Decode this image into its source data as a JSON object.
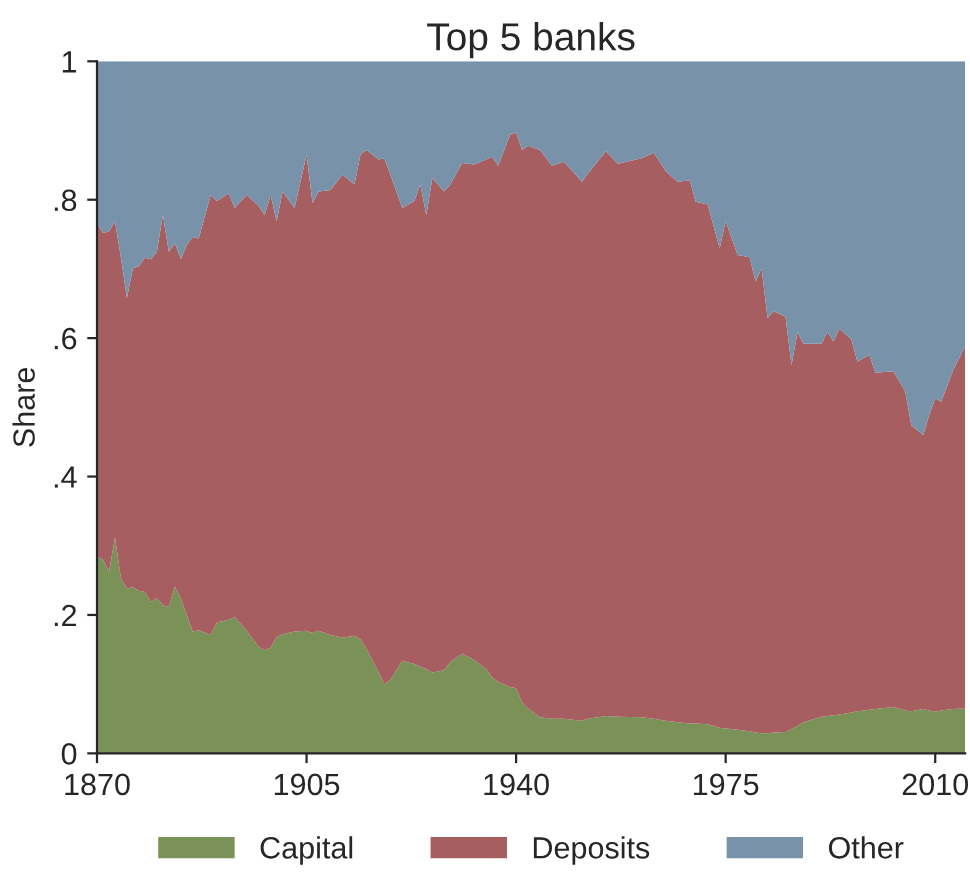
{
  "chart_data": {
    "type": "area",
    "title": "Top 5 banks",
    "ylabel": "Share",
    "stacked": true,
    "x": [
      1870,
      1871,
      1872,
      1873,
      1874,
      1875,
      1876,
      1877,
      1878,
      1879,
      1880,
      1881,
      1882,
      1883,
      1884,
      1885,
      1886,
      1887,
      1889,
      1890,
      1892,
      1893,
      1895,
      1897,
      1898,
      1899,
      1900,
      1901,
      1903,
      1905,
      1906,
      1907,
      1909,
      1911,
      1913,
      1914,
      1915,
      1917,
      1918,
      1919,
      1921,
      1923,
      1924,
      1925,
      1926,
      1928,
      1929,
      1931,
      1933,
      1935,
      1936,
      1937,
      1939,
      1940,
      1941,
      1942,
      1944,
      1946,
      1948,
      1951,
      1952,
      1955,
      1957,
      1961,
      1963,
      1965,
      1967,
      1969,
      1970,
      1972,
      1974,
      1975,
      1977,
      1979,
      1980,
      1981,
      1982,
      1983,
      1985,
      1986,
      1987,
      1988,
      1991,
      1992,
      1993,
      1994,
      1996,
      1997,
      1999,
      2000,
      2003,
      2005,
      2006,
      2008,
      2009,
      2010,
      2011,
      2013,
      2015
    ],
    "series": [
      {
        "name": "Capital",
        "color": "#7a9157",
        "values": [
          0.284,
          0.28,
          0.262,
          0.312,
          0.253,
          0.238,
          0.24,
          0.235,
          0.233,
          0.219,
          0.224,
          0.214,
          0.212,
          0.241,
          0.224,
          0.2,
          0.176,
          0.178,
          0.171,
          0.189,
          0.193,
          0.197,
          0.177,
          0.154,
          0.149,
          0.153,
          0.168,
          0.172,
          0.176,
          0.177,
          0.174,
          0.177,
          0.171,
          0.167,
          0.17,
          0.165,
          0.151,
          0.118,
          0.1,
          0.106,
          0.134,
          0.129,
          0.125,
          0.122,
          0.117,
          0.12,
          0.132,
          0.144,
          0.135,
          0.122,
          0.11,
          0.103,
          0.096,
          0.094,
          0.074,
          0.065,
          0.052,
          0.05,
          0.05,
          0.047,
          0.05,
          0.054,
          0.053,
          0.052,
          0.05,
          0.047,
          0.045,
          0.043,
          0.043,
          0.042,
          0.037,
          0.036,
          0.034,
          0.032,
          0.03,
          0.029,
          0.029,
          0.03,
          0.031,
          0.035,
          0.04,
          0.045,
          0.053,
          0.054,
          0.055,
          0.056,
          0.059,
          0.061,
          0.063,
          0.064,
          0.067,
          0.062,
          0.061,
          0.064,
          0.062,
          0.06,
          0.062,
          0.064,
          0.065
        ]
      },
      {
        "name": "Deposits",
        "color": "#a65e60",
        "values": [
          0.482,
          0.472,
          0.492,
          0.457,
          0.463,
          0.42,
          0.461,
          0.469,
          0.483,
          0.495,
          0.501,
          0.564,
          0.513,
          0.496,
          0.49,
          0.535,
          0.57,
          0.566,
          0.636,
          0.609,
          0.616,
          0.591,
          0.63,
          0.637,
          0.629,
          0.654,
          0.601,
          0.64,
          0.612,
          0.688,
          0.621,
          0.635,
          0.643,
          0.669,
          0.652,
          0.7,
          0.721,
          0.74,
          0.76,
          0.73,
          0.654,
          0.669,
          0.697,
          0.656,
          0.714,
          0.692,
          0.69,
          0.709,
          0.716,
          0.736,
          0.752,
          0.746,
          0.798,
          0.803,
          0.798,
          0.813,
          0.82,
          0.799,
          0.805,
          0.779,
          0.788,
          0.816,
          0.799,
          0.808,
          0.818,
          0.794,
          0.781,
          0.785,
          0.754,
          0.751,
          0.693,
          0.733,
          0.686,
          0.685,
          0.652,
          0.672,
          0.6,
          0.609,
          0.6,
          0.526,
          0.569,
          0.547,
          0.539,
          0.555,
          0.54,
          0.558,
          0.539,
          0.505,
          0.513,
          0.486,
          0.485,
          0.461,
          0.413,
          0.396,
          0.427,
          0.453,
          0.446,
          0.49,
          0.523
        ]
      },
      {
        "name": "Other",
        "color": "#7892aa",
        "values": [
          0.234,
          0.248,
          0.246,
          0.231,
          0.284,
          0.342,
          0.299,
          0.296,
          0.284,
          0.286,
          0.275,
          0.222,
          0.275,
          0.263,
          0.286,
          0.265,
          0.254,
          0.256,
          0.193,
          0.202,
          0.191,
          0.212,
          0.193,
          0.209,
          0.222,
          0.193,
          0.231,
          0.188,
          0.212,
          0.135,
          0.205,
          0.188,
          0.186,
          0.164,
          0.178,
          0.135,
          0.128,
          0.142,
          0.14,
          0.164,
          0.212,
          0.202,
          0.178,
          0.222,
          0.169,
          0.188,
          0.178,
          0.147,
          0.149,
          0.142,
          0.138,
          0.151,
          0.106,
          0.103,
          0.128,
          0.122,
          0.128,
          0.151,
          0.145,
          0.174,
          0.162,
          0.13,
          0.148,
          0.14,
          0.132,
          0.159,
          0.174,
          0.172,
          0.203,
          0.207,
          0.27,
          0.231,
          0.28,
          0.283,
          0.318,
          0.299,
          0.371,
          0.361,
          0.369,
          0.439,
          0.391,
          0.408,
          0.408,
          0.391,
          0.405,
          0.386,
          0.402,
          0.434,
          0.424,
          0.45,
          0.448,
          0.477,
          0.526,
          0.54,
          0.511,
          0.487,
          0.492,
          0.446,
          0.412
        ]
      }
    ],
    "xlim": [
      1870,
      2015
    ],
    "xticks": [
      1870,
      1905,
      1940,
      1975,
      2010
    ],
    "ylim": [
      0,
      1
    ],
    "yticks": [
      0,
      {
        "value": 0.2,
        "label": ".2"
      },
      {
        "value": 0.4,
        "label": ".4"
      },
      {
        "value": 0.6,
        "label": ".6"
      },
      {
        "value": 0.8,
        "label": ".8"
      },
      1
    ],
    "grid": false,
    "legend": "bottom"
  }
}
